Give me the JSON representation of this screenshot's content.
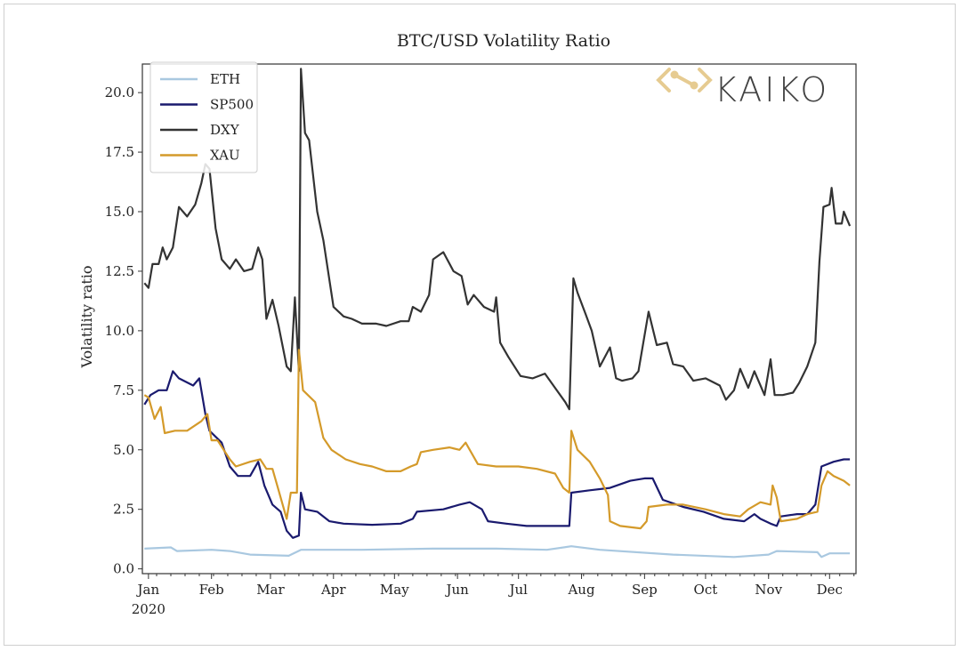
{
  "chart_data": {
    "type": "line",
    "title": "BTC/USD Volatility Ratio",
    "xlabel": "",
    "ylabel": "Volatility ratio",
    "xlim": [
      "2019-12-29",
      "2020-12-14"
    ],
    "ylim": [
      -0.2,
      21.2
    ],
    "x_ticks": [
      {
        "date": "2020-01-01",
        "label": "Jan",
        "sublabel": "2020"
      },
      {
        "date": "2020-02-01",
        "label": "Feb"
      },
      {
        "date": "2020-03-01",
        "label": "Mar"
      },
      {
        "date": "2020-04-01",
        "label": "Apr"
      },
      {
        "date": "2020-05-01",
        "label": "May"
      },
      {
        "date": "2020-06-01",
        "label": "Jun"
      },
      {
        "date": "2020-07-01",
        "label": "Jul"
      },
      {
        "date": "2020-08-01",
        "label": "Aug"
      },
      {
        "date": "2020-09-01",
        "label": "Sep"
      },
      {
        "date": "2020-10-01",
        "label": "Oct"
      },
      {
        "date": "2020-11-01",
        "label": "Nov"
      },
      {
        "date": "2020-12-01",
        "label": "Dec"
      }
    ],
    "y_ticks": [
      {
        "value": 0,
        "label": "0.0"
      },
      {
        "value": 2.5,
        "label": "2.5"
      },
      {
        "value": 5,
        "label": "5.0"
      },
      {
        "value": 7.5,
        "label": "7.5"
      },
      {
        "value": 10,
        "label": "10.0"
      },
      {
        "value": 12.5,
        "label": "12.5"
      },
      {
        "value": 15,
        "label": "15.0"
      },
      {
        "value": 17.5,
        "label": "17.5"
      },
      {
        "value": 20,
        "label": "20.0"
      }
    ],
    "grid": false,
    "legend_position": "top-left",
    "watermark": "KAIKO",
    "series": [
      {
        "name": "ETH",
        "color": "#a9c8e0",
        "points": [
          [
            "2019-12-30",
            0.85
          ],
          [
            "2020-01-12",
            0.9
          ],
          [
            "2020-01-15",
            0.75
          ],
          [
            "2020-02-01",
            0.8
          ],
          [
            "2020-02-10",
            0.75
          ],
          [
            "2020-02-20",
            0.6
          ],
          [
            "2020-03-10",
            0.55
          ],
          [
            "2020-03-16",
            0.8
          ],
          [
            "2020-04-15",
            0.8
          ],
          [
            "2020-05-20",
            0.85
          ],
          [
            "2020-06-20",
            0.85
          ],
          [
            "2020-07-15",
            0.8
          ],
          [
            "2020-07-27",
            0.95
          ],
          [
            "2020-08-10",
            0.8
          ],
          [
            "2020-09-15",
            0.6
          ],
          [
            "2020-10-15",
            0.5
          ],
          [
            "2020-11-01",
            0.6
          ],
          [
            "2020-11-05",
            0.75
          ],
          [
            "2020-11-25",
            0.7
          ],
          [
            "2020-11-27",
            0.5
          ],
          [
            "2020-12-01",
            0.65
          ],
          [
            "2020-12-11",
            0.65
          ]
        ]
      },
      {
        "name": "SP500",
        "color": "#1a1a6e",
        "points": [
          [
            "2019-12-30",
            6.9
          ],
          [
            "2020-01-02",
            7.3
          ],
          [
            "2020-01-06",
            7.5
          ],
          [
            "2020-01-10",
            7.5
          ],
          [
            "2020-01-13",
            8.3
          ],
          [
            "2020-01-16",
            8.0
          ],
          [
            "2020-01-23",
            7.7
          ],
          [
            "2020-01-26",
            8.0
          ],
          [
            "2020-01-29",
            6.5
          ],
          [
            "2020-01-31",
            5.8
          ],
          [
            "2020-02-06",
            5.3
          ],
          [
            "2020-02-10",
            4.3
          ],
          [
            "2020-02-14",
            3.9
          ],
          [
            "2020-02-20",
            3.9
          ],
          [
            "2020-02-24",
            4.5
          ],
          [
            "2020-02-27",
            3.5
          ],
          [
            "2020-03-02",
            2.7
          ],
          [
            "2020-03-06",
            2.4
          ],
          [
            "2020-03-09",
            1.6
          ],
          [
            "2020-03-12",
            1.3
          ],
          [
            "2020-03-15",
            1.4
          ],
          [
            "2020-03-16",
            3.2
          ],
          [
            "2020-03-18",
            2.5
          ],
          [
            "2020-03-24",
            2.4
          ],
          [
            "2020-03-30",
            2.0
          ],
          [
            "2020-04-06",
            1.9
          ],
          [
            "2020-04-20",
            1.85
          ],
          [
            "2020-05-04",
            1.9
          ],
          [
            "2020-05-10",
            2.1
          ],
          [
            "2020-05-12",
            2.4
          ],
          [
            "2020-05-25",
            2.5
          ],
          [
            "2020-06-02",
            2.7
          ],
          [
            "2020-06-07",
            2.8
          ],
          [
            "2020-06-13",
            2.5
          ],
          [
            "2020-06-16",
            2.0
          ],
          [
            "2020-06-25",
            1.9
          ],
          [
            "2020-07-05",
            1.8
          ],
          [
            "2020-07-15",
            1.8
          ],
          [
            "2020-07-26",
            1.8
          ],
          [
            "2020-07-27",
            3.2
          ],
          [
            "2020-08-05",
            3.3
          ],
          [
            "2020-08-15",
            3.4
          ],
          [
            "2020-08-25",
            3.7
          ],
          [
            "2020-09-01",
            3.8
          ],
          [
            "2020-09-05",
            3.8
          ],
          [
            "2020-09-10",
            2.9
          ],
          [
            "2020-09-20",
            2.6
          ],
          [
            "2020-09-30",
            2.4
          ],
          [
            "2020-10-10",
            2.1
          ],
          [
            "2020-10-20",
            2.0
          ],
          [
            "2020-10-25",
            2.3
          ],
          [
            "2020-10-28",
            2.1
          ],
          [
            "2020-11-02",
            1.9
          ],
          [
            "2020-11-05",
            1.8
          ],
          [
            "2020-11-07",
            2.2
          ],
          [
            "2020-11-15",
            2.3
          ],
          [
            "2020-11-20",
            2.3
          ],
          [
            "2020-11-24",
            2.7
          ],
          [
            "2020-11-27",
            4.3
          ],
          [
            "2020-12-03",
            4.5
          ],
          [
            "2020-12-08",
            4.6
          ],
          [
            "2020-12-11",
            4.6
          ]
        ]
      },
      {
        "name": "DXY",
        "color": "#333333",
        "points": [
          [
            "2019-12-30",
            12.0
          ],
          [
            "2020-01-01",
            11.8
          ],
          [
            "2020-01-03",
            12.8
          ],
          [
            "2020-01-06",
            12.8
          ],
          [
            "2020-01-08",
            13.5
          ],
          [
            "2020-01-10",
            13.0
          ],
          [
            "2020-01-13",
            13.5
          ],
          [
            "2020-01-16",
            15.2
          ],
          [
            "2020-01-20",
            14.8
          ],
          [
            "2020-01-24",
            15.3
          ],
          [
            "2020-01-27",
            16.2
          ],
          [
            "2020-01-29",
            17.0
          ],
          [
            "2020-01-31",
            16.8
          ],
          [
            "2020-02-03",
            14.3
          ],
          [
            "2020-02-06",
            13.0
          ],
          [
            "2020-02-10",
            12.6
          ],
          [
            "2020-02-13",
            13.0
          ],
          [
            "2020-02-17",
            12.5
          ],
          [
            "2020-02-21",
            12.6
          ],
          [
            "2020-02-24",
            13.5
          ],
          [
            "2020-02-26",
            13.0
          ],
          [
            "2020-02-28",
            10.5
          ],
          [
            "2020-03-02",
            11.3
          ],
          [
            "2020-03-05",
            10.2
          ],
          [
            "2020-03-09",
            8.5
          ],
          [
            "2020-03-11",
            8.3
          ],
          [
            "2020-03-13",
            11.4
          ],
          [
            "2020-03-15",
            8.3
          ],
          [
            "2020-03-16",
            21.0
          ],
          [
            "2020-03-18",
            18.3
          ],
          [
            "2020-03-20",
            18.0
          ],
          [
            "2020-03-24",
            15.0
          ],
          [
            "2020-03-27",
            13.8
          ],
          [
            "2020-04-01",
            11.0
          ],
          [
            "2020-04-06",
            10.6
          ],
          [
            "2020-04-10",
            10.5
          ],
          [
            "2020-04-15",
            10.3
          ],
          [
            "2020-04-22",
            10.3
          ],
          [
            "2020-04-27",
            10.2
          ],
          [
            "2020-05-04",
            10.4
          ],
          [
            "2020-05-08",
            10.4
          ],
          [
            "2020-05-10",
            11.0
          ],
          [
            "2020-05-14",
            10.8
          ],
          [
            "2020-05-18",
            11.5
          ],
          [
            "2020-05-20",
            13.0
          ],
          [
            "2020-05-25",
            13.3
          ],
          [
            "2020-05-30",
            12.5
          ],
          [
            "2020-06-03",
            12.3
          ],
          [
            "2020-06-06",
            11.1
          ],
          [
            "2020-06-09",
            11.5
          ],
          [
            "2020-06-14",
            11.0
          ],
          [
            "2020-06-19",
            10.8
          ],
          [
            "2020-06-20",
            11.4
          ],
          [
            "2020-06-22",
            9.5
          ],
          [
            "2020-06-26",
            8.9
          ],
          [
            "2020-07-02",
            8.1
          ],
          [
            "2020-07-08",
            8.0
          ],
          [
            "2020-07-14",
            8.2
          ],
          [
            "2020-07-19",
            7.6
          ],
          [
            "2020-07-24",
            7.0
          ],
          [
            "2020-07-26",
            6.7
          ],
          [
            "2020-07-28",
            12.2
          ],
          [
            "2020-07-30",
            11.6
          ],
          [
            "2020-08-03",
            10.7
          ],
          [
            "2020-08-06",
            10.0
          ],
          [
            "2020-08-10",
            8.5
          ],
          [
            "2020-08-15",
            9.3
          ],
          [
            "2020-08-18",
            8.0
          ],
          [
            "2020-08-21",
            7.9
          ],
          [
            "2020-08-26",
            8.0
          ],
          [
            "2020-08-29",
            8.3
          ],
          [
            "2020-09-03",
            10.8
          ],
          [
            "2020-09-07",
            9.4
          ],
          [
            "2020-09-12",
            9.5
          ],
          [
            "2020-09-15",
            8.6
          ],
          [
            "2020-09-20",
            8.5
          ],
          [
            "2020-09-25",
            7.9
          ],
          [
            "2020-10-01",
            8.0
          ],
          [
            "2020-10-08",
            7.7
          ],
          [
            "2020-10-11",
            7.1
          ],
          [
            "2020-10-15",
            7.5
          ],
          [
            "2020-10-18",
            8.4
          ],
          [
            "2020-10-22",
            7.6
          ],
          [
            "2020-10-25",
            8.3
          ],
          [
            "2020-10-30",
            7.3
          ],
          [
            "2020-11-02",
            8.8
          ],
          [
            "2020-11-04",
            7.3
          ],
          [
            "2020-11-08",
            7.3
          ],
          [
            "2020-11-13",
            7.4
          ],
          [
            "2020-11-16",
            7.8
          ],
          [
            "2020-11-20",
            8.5
          ],
          [
            "2020-11-24",
            9.5
          ],
          [
            "2020-11-26",
            12.9
          ],
          [
            "2020-11-28",
            15.2
          ],
          [
            "2020-12-01",
            15.3
          ],
          [
            "2020-12-02",
            16.0
          ],
          [
            "2020-12-04",
            14.5
          ],
          [
            "2020-12-07",
            14.5
          ],
          [
            "2020-12-08",
            15.0
          ],
          [
            "2020-12-11",
            14.4
          ]
        ]
      },
      {
        "name": "XAU",
        "color": "#d49a2a",
        "points": [
          [
            "2019-12-30",
            7.3
          ],
          [
            "2020-01-01",
            7.2
          ],
          [
            "2020-01-04",
            6.3
          ],
          [
            "2020-01-07",
            6.8
          ],
          [
            "2020-01-09",
            5.7
          ],
          [
            "2020-01-14",
            5.8
          ],
          [
            "2020-01-20",
            5.8
          ],
          [
            "2020-01-27",
            6.2
          ],
          [
            "2020-01-30",
            6.5
          ],
          [
            "2020-02-01",
            5.4
          ],
          [
            "2020-02-04",
            5.4
          ],
          [
            "2020-02-10",
            4.6
          ],
          [
            "2020-02-13",
            4.3
          ],
          [
            "2020-02-20",
            4.5
          ],
          [
            "2020-02-25",
            4.6
          ],
          [
            "2020-02-28",
            4.2
          ],
          [
            "2020-03-02",
            4.2
          ],
          [
            "2020-03-05",
            3.3
          ],
          [
            "2020-03-09",
            2.1
          ],
          [
            "2020-03-11",
            3.2
          ],
          [
            "2020-03-14",
            3.2
          ],
          [
            "2020-03-15",
            9.2
          ],
          [
            "2020-03-17",
            7.5
          ],
          [
            "2020-03-23",
            7.0
          ],
          [
            "2020-03-27",
            5.5
          ],
          [
            "2020-03-31",
            5.0
          ],
          [
            "2020-04-07",
            4.6
          ],
          [
            "2020-04-14",
            4.4
          ],
          [
            "2020-04-20",
            4.3
          ],
          [
            "2020-04-27",
            4.1
          ],
          [
            "2020-05-04",
            4.1
          ],
          [
            "2020-05-09",
            4.3
          ],
          [
            "2020-05-12",
            4.4
          ],
          [
            "2020-05-14",
            4.9
          ],
          [
            "2020-05-20",
            5.0
          ],
          [
            "2020-05-28",
            5.1
          ],
          [
            "2020-06-02",
            5.0
          ],
          [
            "2020-06-05",
            5.3
          ],
          [
            "2020-06-07",
            5.0
          ],
          [
            "2020-06-11",
            4.4
          ],
          [
            "2020-06-20",
            4.3
          ],
          [
            "2020-07-01",
            4.3
          ],
          [
            "2020-07-10",
            4.2
          ],
          [
            "2020-07-19",
            4.0
          ],
          [
            "2020-07-23",
            3.4
          ],
          [
            "2020-07-26",
            3.2
          ],
          [
            "2020-07-27",
            5.8
          ],
          [
            "2020-07-30",
            5.0
          ],
          [
            "2020-08-05",
            4.5
          ],
          [
            "2020-08-10",
            3.8
          ],
          [
            "2020-08-14",
            3.1
          ],
          [
            "2020-08-15",
            2.0
          ],
          [
            "2020-08-20",
            1.8
          ],
          [
            "2020-08-30",
            1.7
          ],
          [
            "2020-09-02",
            2.0
          ],
          [
            "2020-09-03",
            2.6
          ],
          [
            "2020-09-12",
            2.7
          ],
          [
            "2020-09-20",
            2.7
          ],
          [
            "2020-10-01",
            2.5
          ],
          [
            "2020-10-10",
            2.3
          ],
          [
            "2020-10-18",
            2.2
          ],
          [
            "2020-10-22",
            2.5
          ],
          [
            "2020-10-28",
            2.8
          ],
          [
            "2020-11-02",
            2.7
          ],
          [
            "2020-11-03",
            3.5
          ],
          [
            "2020-11-05",
            3.0
          ],
          [
            "2020-11-07",
            2.0
          ],
          [
            "2020-11-15",
            2.1
          ],
          [
            "2020-11-20",
            2.3
          ],
          [
            "2020-11-25",
            2.4
          ],
          [
            "2020-11-27",
            3.5
          ],
          [
            "2020-11-30",
            4.1
          ],
          [
            "2020-12-03",
            3.9
          ],
          [
            "2020-12-08",
            3.7
          ],
          [
            "2020-12-11",
            3.5
          ]
        ]
      }
    ]
  }
}
